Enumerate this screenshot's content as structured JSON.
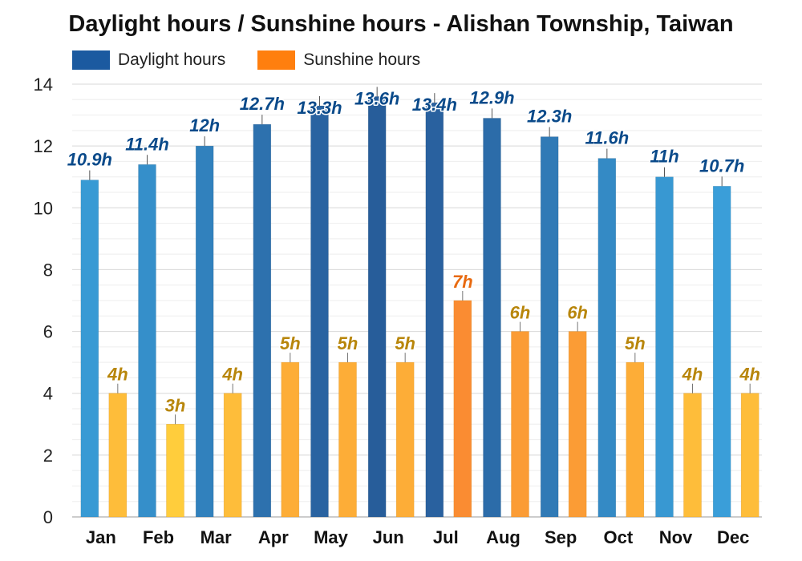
{
  "chart_data": {
    "type": "bar",
    "title": "Daylight hours / Sunshine hours - Alishan Township, Taiwan",
    "categories": [
      "Jan",
      "Feb",
      "Mar",
      "Apr",
      "May",
      "Jun",
      "Jul",
      "Aug",
      "Sep",
      "Oct",
      "Nov",
      "Dec"
    ],
    "series": [
      {
        "name": "Daylight hours",
        "values": [
          10.9,
          11.4,
          12,
          12.7,
          13.3,
          13.6,
          13.4,
          12.9,
          12.3,
          11.6,
          11,
          10.7
        ],
        "labels": [
          "10.9h",
          "11.4h",
          "12h",
          "12.7h",
          "13.3h",
          "13.6h",
          "13.4h",
          "12.9h",
          "12.3h",
          "11.6h",
          "11h",
          "10.7h"
        ],
        "legend_color": "#1b5aa0",
        "label_color": "#0a4a8a"
      },
      {
        "name": "Sunshine hours",
        "values": [
          4,
          3,
          4,
          5,
          5,
          5,
          7,
          6,
          6,
          5,
          4,
          4
        ],
        "labels": [
          "4h",
          "3h",
          "4h",
          "5h",
          "5h",
          "5h",
          "7h",
          "6h",
          "6h",
          "5h",
          "4h",
          "4h"
        ],
        "legend_color": "#ff7f0e",
        "label_color": "#b8860b",
        "highlight_label_color": "#e86a10"
      }
    ],
    "ylim": [
      0,
      14
    ],
    "yticks": [
      0,
      2,
      4,
      6,
      8,
      10,
      12,
      14
    ],
    "grid": true,
    "legend_position": "top-left"
  }
}
